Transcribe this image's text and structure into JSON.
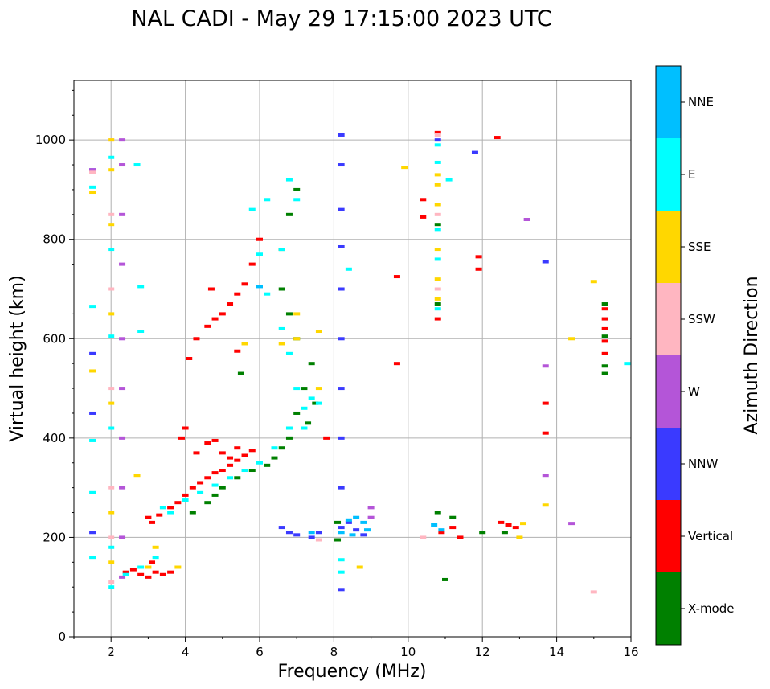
{
  "chart_data": {
    "type": "scatter",
    "title": "NAL CADI - May 29 17:15:00 2023 UTC",
    "xlabel": "Frequency (MHz)",
    "ylabel": "Virtual height (km)",
    "xlim": [
      1,
      16
    ],
    "ylim": [
      0,
      1120
    ],
    "xticks": [
      "2",
      "4",
      "6",
      "8",
      "10",
      "12",
      "14",
      "16"
    ],
    "yticks": [
      "0",
      "200",
      "400",
      "600",
      "800",
      "1000"
    ],
    "grid": true,
    "colorbar": {
      "label": "Azimuth Direction",
      "categories": [
        {
          "name": "X-mode",
          "color": "#008000"
        },
        {
          "name": "Vertical",
          "color": "#ff0000"
        },
        {
          "name": "NNW",
          "color": "#3a3aff"
        },
        {
          "name": "W",
          "color": "#b455d8"
        },
        {
          "name": "SSW",
          "color": "#ffb6c1"
        },
        {
          "name": "SSE",
          "color": "#ffd700"
        },
        {
          "name": "E",
          "color": "#00ffff"
        },
        {
          "name": "NNE",
          "color": "#00bfff"
        }
      ]
    },
    "series": [
      {
        "name": "Vertical",
        "points": [
          [
            2.4,
            130
          ],
          [
            2.6,
            135
          ],
          [
            2.8,
            125
          ],
          [
            3.0,
            120
          ],
          [
            3.1,
            150
          ],
          [
            3.2,
            130
          ],
          [
            3.4,
            125
          ],
          [
            3.6,
            130
          ],
          [
            3.0,
            240
          ],
          [
            3.1,
            230
          ],
          [
            3.3,
            245
          ],
          [
            3.6,
            260
          ],
          [
            3.8,
            270
          ],
          [
            4.0,
            285
          ],
          [
            4.2,
            300
          ],
          [
            4.4,
            310
          ],
          [
            4.6,
            320
          ],
          [
            4.8,
            330
          ],
          [
            5.0,
            335
          ],
          [
            5.2,
            345
          ],
          [
            5.4,
            355
          ],
          [
            5.6,
            365
          ],
          [
            5.8,
            375
          ],
          [
            3.9,
            400
          ],
          [
            4.0,
            420
          ],
          [
            4.3,
            370
          ],
          [
            4.6,
            390
          ],
          [
            4.8,
            395
          ],
          [
            5.0,
            370
          ],
          [
            5.2,
            360
          ],
          [
            5.4,
            380
          ],
          [
            4.1,
            560
          ],
          [
            4.3,
            600
          ],
          [
            4.6,
            625
          ],
          [
            4.8,
            640
          ],
          [
            5.0,
            650
          ],
          [
            5.2,
            670
          ],
          [
            5.4,
            690
          ],
          [
            5.6,
            710
          ],
          [
            5.8,
            750
          ],
          [
            6.0,
            800
          ],
          [
            4.7,
            700
          ],
          [
            5.4,
            575
          ],
          [
            10.8,
            1015
          ],
          [
            10.8,
            640
          ],
          [
            10.4,
            880
          ],
          [
            10.4,
            845
          ],
          [
            11.2,
            220
          ],
          [
            11.4,
            200
          ],
          [
            12.5,
            230
          ],
          [
            12.7,
            225
          ],
          [
            12.9,
            220
          ],
          [
            13.7,
            470
          ],
          [
            13.7,
            410
          ],
          [
            12.4,
            1005
          ],
          [
            11.9,
            765
          ],
          [
            11.9,
            740
          ],
          [
            9.7,
            725
          ],
          [
            9.7,
            550
          ],
          [
            15.3,
            660
          ],
          [
            15.3,
            640
          ],
          [
            15.3,
            620
          ],
          [
            15.3,
            595
          ],
          [
            15.3,
            570
          ],
          [
            7.8,
            400
          ],
          [
            10.9,
            210
          ]
        ]
      },
      {
        "name": "X-mode",
        "points": [
          [
            4.2,
            250
          ],
          [
            4.6,
            270
          ],
          [
            4.8,
            285
          ],
          [
            5.0,
            300
          ],
          [
            5.4,
            320
          ],
          [
            5.8,
            335
          ],
          [
            6.2,
            345
          ],
          [
            6.4,
            360
          ],
          [
            6.6,
            380
          ],
          [
            6.8,
            400
          ],
          [
            7.0,
            450
          ],
          [
            7.2,
            500
          ],
          [
            7.4,
            550
          ],
          [
            7.0,
            600
          ],
          [
            6.8,
            650
          ],
          [
            6.6,
            700
          ],
          [
            6.6,
            780
          ],
          [
            6.8,
            850
          ],
          [
            7.0,
            900
          ],
          [
            7.3,
            430
          ],
          [
            7.5,
            470
          ],
          [
            5.5,
            530
          ],
          [
            10.8,
            670
          ],
          [
            10.8,
            830
          ],
          [
            10.8,
            250
          ],
          [
            11.0,
            115
          ],
          [
            11.2,
            240
          ],
          [
            12.0,
            210
          ],
          [
            12.6,
            210
          ],
          [
            15.3,
            545
          ],
          [
            15.3,
            530
          ],
          [
            15.3,
            605
          ],
          [
            15.3,
            670
          ],
          [
            8.1,
            230
          ],
          [
            8.1,
            195
          ]
        ]
      },
      {
        "name": "NNW",
        "points": [
          [
            1.5,
            940
          ],
          [
            1.5,
            570
          ],
          [
            1.5,
            450
          ],
          [
            1.5,
            210
          ],
          [
            8.2,
            1010
          ],
          [
            8.2,
            950
          ],
          [
            8.2,
            860
          ],
          [
            8.2,
            785
          ],
          [
            8.2,
            700
          ],
          [
            8.2,
            600
          ],
          [
            8.2,
            500
          ],
          [
            8.2,
            400
          ],
          [
            8.2,
            300
          ],
          [
            8.2,
            220
          ],
          [
            8.2,
            95
          ],
          [
            8.4,
            230
          ],
          [
            8.6,
            215
          ],
          [
            8.8,
            205
          ],
          [
            6.6,
            220
          ],
          [
            6.8,
            210
          ],
          [
            7.0,
            205
          ],
          [
            7.4,
            200
          ],
          [
            7.6,
            210
          ],
          [
            13.7,
            755
          ],
          [
            10.8,
            1000
          ],
          [
            11.8,
            975
          ]
        ]
      },
      {
        "name": "W",
        "points": [
          [
            1.5,
            940
          ],
          [
            2.3,
            1000
          ],
          [
            2.3,
            950
          ],
          [
            2.3,
            850
          ],
          [
            2.3,
            750
          ],
          [
            2.3,
            600
          ],
          [
            2.3,
            500
          ],
          [
            2.3,
            400
          ],
          [
            2.3,
            300
          ],
          [
            2.3,
            200
          ],
          [
            2.3,
            120
          ],
          [
            9.0,
            260
          ],
          [
            9.0,
            240
          ],
          [
            13.2,
            840
          ],
          [
            13.7,
            545
          ],
          [
            13.7,
            325
          ],
          [
            14.4,
            228
          ]
        ]
      },
      {
        "name": "SSW",
        "points": [
          [
            1.5,
            935
          ],
          [
            2.0,
            1000
          ],
          [
            2.0,
            850
          ],
          [
            2.0,
            700
          ],
          [
            2.0,
            500
          ],
          [
            2.0,
            300
          ],
          [
            2.0,
            200
          ],
          [
            2.0,
            110
          ],
          [
            10.8,
            700
          ],
          [
            10.8,
            850
          ],
          [
            10.8,
            1010
          ],
          [
            15.0,
            90
          ],
          [
            7.6,
            195
          ],
          [
            10.4,
            200
          ]
        ]
      },
      {
        "name": "SSE",
        "points": [
          [
            1.5,
            895
          ],
          [
            1.5,
            535
          ],
          [
            2.0,
            1000
          ],
          [
            2.0,
            940
          ],
          [
            2.0,
            830
          ],
          [
            2.0,
            650
          ],
          [
            2.0,
            470
          ],
          [
            2.0,
            250
          ],
          [
            2.0,
            150
          ],
          [
            3.2,
            180
          ],
          [
            3.0,
            140
          ],
          [
            3.8,
            140
          ],
          [
            5.6,
            590
          ],
          [
            6.6,
            590
          ],
          [
            7.0,
            600
          ],
          [
            7.6,
            500
          ],
          [
            7.6,
            615
          ],
          [
            7.0,
            650
          ],
          [
            9.9,
            945
          ],
          [
            10.8,
            930
          ],
          [
            10.8,
            910
          ],
          [
            10.8,
            870
          ],
          [
            10.8,
            780
          ],
          [
            10.8,
            720
          ],
          [
            10.8,
            680
          ],
          [
            15.0,
            715
          ],
          [
            14.4,
            600
          ],
          [
            13.7,
            265
          ],
          [
            13.1,
            228
          ],
          [
            13.0,
            200
          ],
          [
            8.7,
            140
          ],
          [
            2.7,
            325
          ]
        ]
      },
      {
        "name": "E",
        "points": [
          [
            1.5,
            905
          ],
          [
            1.5,
            665
          ],
          [
            1.5,
            395
          ],
          [
            1.5,
            290
          ],
          [
            1.5,
            160
          ],
          [
            2.0,
            965
          ],
          [
            2.0,
            780
          ],
          [
            2.0,
            605
          ],
          [
            2.0,
            420
          ],
          [
            2.0,
            180
          ],
          [
            2.0,
            100
          ],
          [
            2.4,
            125
          ],
          [
            2.8,
            140
          ],
          [
            3.2,
            160
          ],
          [
            3.6,
            250
          ],
          [
            4.0,
            275
          ],
          [
            4.4,
            290
          ],
          [
            4.8,
            305
          ],
          [
            5.2,
            320
          ],
          [
            5.6,
            335
          ],
          [
            6.0,
            350
          ],
          [
            6.4,
            380
          ],
          [
            6.8,
            420
          ],
          [
            7.2,
            420
          ],
          [
            7.2,
            460
          ],
          [
            7.0,
            500
          ],
          [
            7.4,
            480
          ],
          [
            7.6,
            470
          ],
          [
            6.8,
            570
          ],
          [
            6.6,
            620
          ],
          [
            6.2,
            690
          ],
          [
            6.0,
            770
          ],
          [
            5.8,
            860
          ],
          [
            6.2,
            880
          ],
          [
            6.6,
            780
          ],
          [
            6.8,
            920
          ],
          [
            7.0,
            880
          ],
          [
            10.8,
            990
          ],
          [
            10.8,
            955
          ],
          [
            10.8,
            820
          ],
          [
            10.8,
            760
          ],
          [
            10.8,
            660
          ],
          [
            11.1,
            920
          ],
          [
            8.4,
            740
          ],
          [
            8.2,
            130
          ],
          [
            8.2,
            155
          ],
          [
            15.9,
            550
          ],
          [
            2.7,
            950
          ],
          [
            2.8,
            615
          ],
          [
            2.8,
            705
          ],
          [
            3.4,
            260
          ]
        ]
      },
      {
        "name": "NNE",
        "points": [
          [
            8.4,
            235
          ],
          [
            8.6,
            240
          ],
          [
            8.8,
            230
          ],
          [
            8.9,
            215
          ],
          [
            8.5,
            205
          ],
          [
            10.7,
            225
          ],
          [
            10.9,
            215
          ],
          [
            8.2,
            210
          ],
          [
            6.0,
            705
          ],
          [
            7.4,
            210
          ]
        ]
      }
    ]
  }
}
